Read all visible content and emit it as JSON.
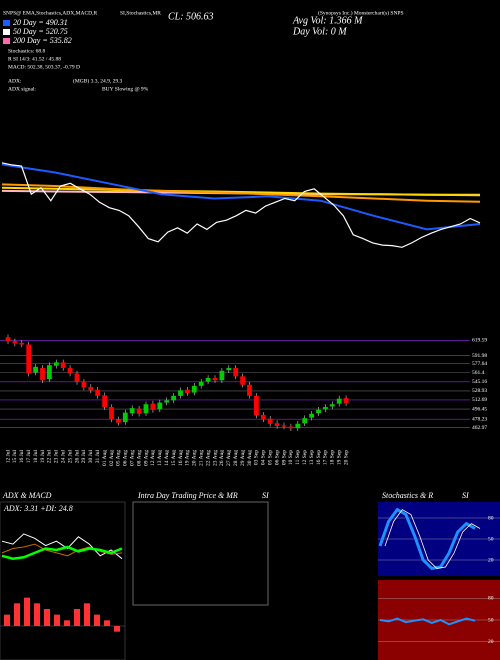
{
  "header": {
    "left": "SNPS@ EMA,Stochastics,ADX,MACD,R",
    "mid": "SI,Stochastics,MR",
    "close": "CL: 506.63",
    "company": "(Synopsys Inc.) Monsterchart(s) SNPS",
    "ma20": "20 Day = 490.31",
    "ma50": "50 Day = 520.75",
    "ma200": "200 Day = 535.82",
    "stoch": "Stochastics: 68.8",
    "rsi": "R     SI 14/3: 41.52 / 45.88",
    "macd": "MACD: 502.38, 503.37, -0.79 D",
    "adx": "ADX:",
    "adx_vals": "(MGB) 3.3, 24.9, 29.3",
    "adx_signal": "ADX  signal:",
    "signal": "BUY Slowing @ 9%",
    "avg_vol": "Avg Vol: 1.366  M",
    "day_vol": "Day Vol: 0  M"
  },
  "ma_panel": {
    "ylim": [
      420,
      660
    ],
    "series": [
      {
        "color": "#ffb6c1",
        "values": [
          566,
          565,
          564,
          563,
          562,
          561,
          560,
          560,
          559,
          559
        ]
      },
      {
        "color": "#ffd700",
        "values": [
          572,
          570,
          568,
          566,
          565,
          563,
          561,
          560,
          559,
          558
        ]
      },
      {
        "color": "#ff9900",
        "values": [
          578,
          575,
          570,
          566,
          563,
          560,
          556,
          552,
          548,
          546
        ]
      },
      {
        "color": "#1e5bff",
        "values": [
          615,
          600,
          580,
          560,
          552,
          556,
          548,
          520,
          495,
          505
        ]
      }
    ]
  },
  "price_panel": {
    "type": "candlestick",
    "ylim": [
      432,
      638
    ],
    "yticks": [
      619.59,
      591.98,
      577.64,
      561.4,
      545.16,
      528.93,
      512.69,
      496.45,
      478.23,
      462.97
    ],
    "dates": [
      "12 Jul",
      "15 Jul",
      "16 Jul",
      "17 Jul",
      "18 Jul",
      "19 Jul",
      "22 Jul",
      "23 Jul",
      "24 Jul",
      "25 Jul",
      "26 Jul",
      "29 Jul",
      "30 Jul",
      "31 Jul",
      "01 Aug",
      "02 Aug",
      "05 Aug",
      "06 Aug",
      "07 Aug",
      "08 Aug",
      "09 Aug",
      "12 Aug",
      "13 Aug",
      "14 Aug",
      "15 Aug",
      "16 Aug",
      "19 Aug",
      "20 Aug",
      "21 Aug",
      "22 Aug",
      "23 Aug",
      "26 Aug",
      "27 Aug",
      "28 Aug",
      "29 Aug",
      "30 Aug",
      "03 Sep",
      "04 Sep",
      "05 Sep",
      "06 Sep",
      "09 Sep",
      "10 Sep",
      "11 Sep",
      "12 Sep",
      "13 Sep",
      "16 Sep",
      "17 Sep",
      "18 Sep",
      "19 Sep",
      "20 Sep"
    ],
    "open": [
      625,
      618,
      615,
      612,
      562,
      570,
      550,
      574,
      580,
      570,
      560,
      545,
      536,
      531,
      521,
      500,
      478,
      473,
      489,
      497,
      489,
      506,
      496,
      508,
      512,
      520,
      531,
      526,
      538,
      546,
      552,
      548,
      566,
      570,
      555,
      540,
      520,
      486,
      479,
      471,
      467,
      465,
      462,
      471,
      481,
      489,
      496,
      501,
      506,
      516
    ],
    "high": [
      630,
      623,
      620,
      617,
      577,
      575,
      580,
      585,
      585,
      575,
      565,
      550,
      541,
      536,
      526,
      505,
      483,
      495,
      503,
      502,
      510,
      511,
      513,
      517,
      525,
      535,
      536,
      543,
      550,
      557,
      557,
      570,
      575,
      575,
      560,
      545,
      525,
      491,
      484,
      476,
      472,
      470,
      475,
      485,
      493,
      500,
      505,
      510,
      520,
      521
    ],
    "low": [
      613,
      609,
      607,
      555,
      557,
      543,
      545,
      569,
      565,
      555,
      540,
      530,
      525,
      515,
      495,
      473,
      467,
      468,
      484,
      483,
      484,
      490,
      491,
      503,
      507,
      515,
      520,
      521,
      533,
      541,
      543,
      543,
      561,
      550,
      535,
      515,
      480,
      473,
      465,
      461,
      460,
      457,
      457,
      466,
      476,
      484,
      491,
      496,
      501,
      502
    ],
    "close": [
      618,
      614,
      612,
      560,
      572,
      548,
      575,
      580,
      570,
      560,
      545,
      535,
      530,
      520,
      500,
      478,
      472,
      490,
      498,
      488,
      505,
      495,
      508,
      512,
      520,
      530,
      525,
      538,
      545,
      552,
      548,
      565,
      570,
      555,
      540,
      520,
      485,
      478,
      470,
      466,
      465,
      462,
      470,
      480,
      488,
      495,
      500,
      505,
      515,
      507
    ]
  },
  "adx_panel": {
    "title": "ADX  & MACD",
    "label": "ADX: 3.31 +DI: 24.8",
    "ylim": [
      0,
      50
    ],
    "series": [
      {
        "color": "#ffffff",
        "values": [
          30,
          28,
          35,
          32,
          27,
          30,
          25,
          33,
          28,
          20,
          24,
          18
        ]
      },
      {
        "color": "#cc6600",
        "values": [
          22,
          25,
          26,
          28,
          24,
          22,
          20,
          24,
          26,
          23,
          21,
          22
        ]
      },
      {
        "color": "#00ff00",
        "values": [
          20,
          18,
          19,
          22,
          25,
          24,
          26,
          23,
          25,
          24,
          22,
          25
        ]
      }
    ],
    "hist_ylim": [
      -6,
      6
    ],
    "hist": [
      2,
      4,
      5,
      4,
      3,
      2,
      1,
      3,
      4,
      2,
      1,
      -1
    ]
  },
  "intraday_panel": {
    "title": "Intra  Day  Trading  Price  & MR",
    "title2": "SI"
  },
  "stoch_panel": {
    "title": "Stochastics & R",
    "title2": "SI",
    "ylim": [
      0,
      100
    ],
    "yticks": [
      80,
      50,
      20
    ],
    "stoch": [
      40,
      75,
      92,
      85,
      55,
      20,
      8,
      10,
      30,
      60,
      72,
      65
    ],
    "rsi_ylim": [
      0,
      100
    ],
    "rsi_ticks": [
      80,
      50,
      20
    ],
    "rsi": [
      50,
      48,
      52,
      47,
      49,
      51,
      46,
      50,
      44,
      48,
      52,
      49
    ]
  }
}
